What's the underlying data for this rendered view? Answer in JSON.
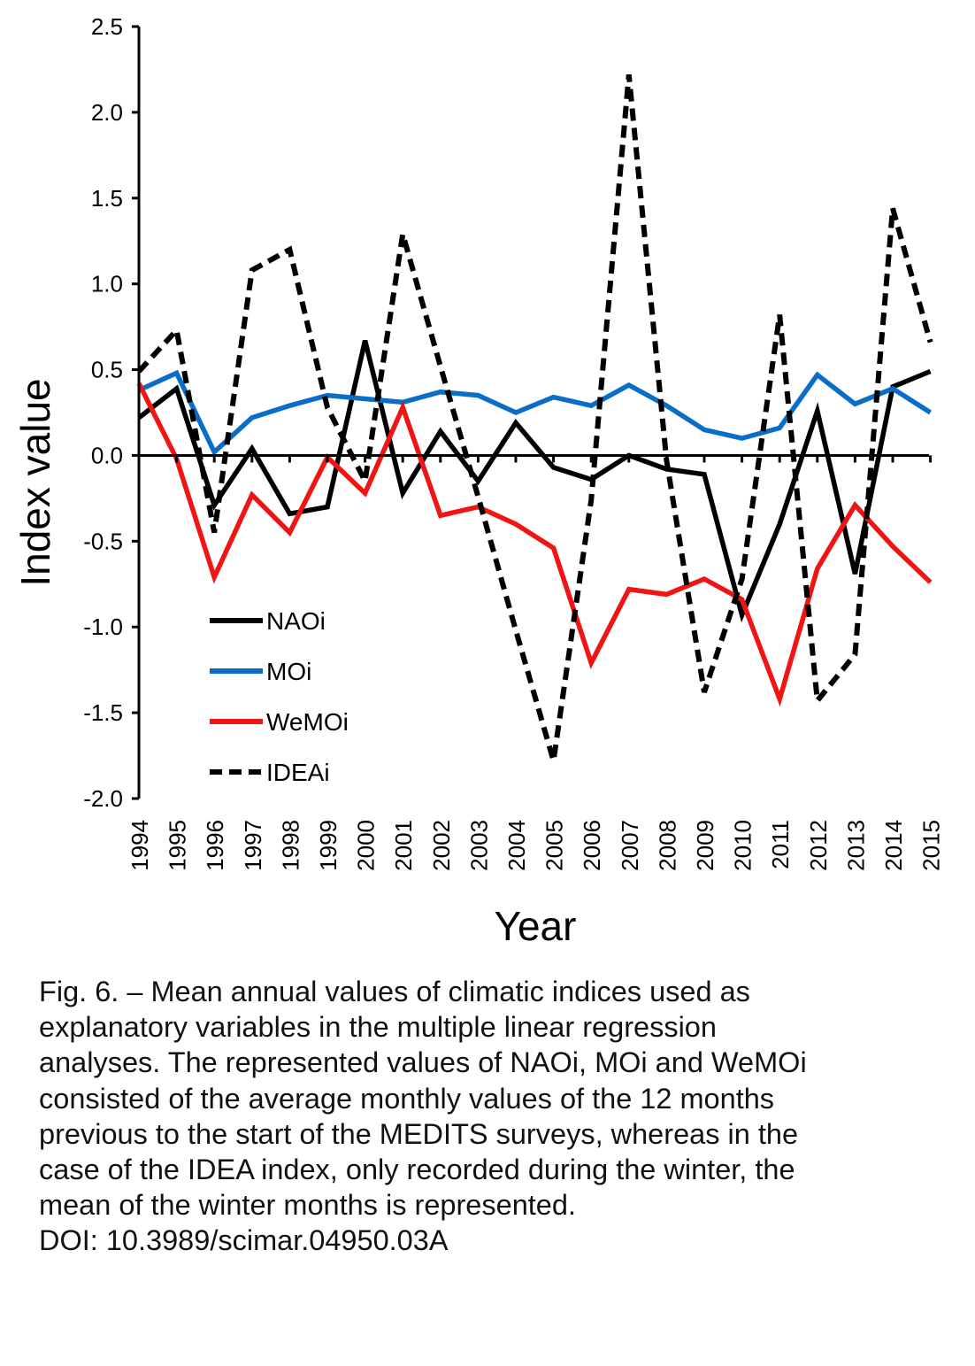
{
  "chart_data": {
    "type": "line",
    "title": "",
    "xlabel": "Year",
    "ylabel": "Index value",
    "ylim": [
      -2.0,
      2.5
    ],
    "yticks": [
      "2.5",
      "2.0",
      "1.5",
      "1.0",
      "0.5",
      "0.0",
      "-0.5",
      "-1.0",
      "-1.5",
      "-2.0"
    ],
    "categories": [
      "1994",
      "1995",
      "1996",
      "1997",
      "1998",
      "1999",
      "2000",
      "2001",
      "2002",
      "2003",
      "2004",
      "2005",
      "2006",
      "2007",
      "2008",
      "2009",
      "2010",
      "2011",
      "2012",
      "2013",
      "2014",
      "2015"
    ],
    "grid": false,
    "legend_position": "bottom-left",
    "series": [
      {
        "name": "NAOi",
        "color": "#000000",
        "dash": "solid",
        "values": [
          0.22,
          0.39,
          -0.29,
          0.04,
          -0.34,
          -0.3,
          0.67,
          -0.22,
          0.14,
          -0.15,
          0.19,
          -0.07,
          -0.14,
          0.0,
          -0.08,
          -0.11,
          -0.93,
          -0.4,
          0.26,
          -0.69,
          0.4,
          0.49
        ]
      },
      {
        "name": "MOi",
        "color": "#0a6ec9",
        "dash": "solid",
        "values": [
          0.38,
          0.48,
          0.02,
          0.22,
          0.29,
          0.35,
          0.33,
          0.31,
          0.37,
          0.35,
          0.25,
          0.34,
          0.29,
          0.41,
          0.29,
          0.15,
          0.1,
          0.16,
          0.47,
          0.3,
          0.39,
          0.25
        ]
      },
      {
        "name": "WeMOi",
        "color": "#f01414",
        "dash": "solid",
        "values": [
          0.42,
          -0.02,
          -0.71,
          -0.23,
          -0.45,
          -0.01,
          -0.22,
          0.28,
          -0.35,
          -0.3,
          -0.4,
          -0.54,
          -1.21,
          -0.78,
          -0.81,
          -0.72,
          -0.84,
          -1.42,
          -0.66,
          -0.29,
          -0.53,
          -0.74
        ]
      },
      {
        "name": "IDEAi",
        "color": "#000000",
        "dash": "dashed",
        "values": [
          0.49,
          0.73,
          -0.45,
          1.08,
          1.2,
          0.28,
          -0.15,
          1.29,
          0.52,
          -0.24,
          -1.02,
          -1.78,
          -0.26,
          2.22,
          -0.03,
          -1.38,
          -0.72,
          0.82,
          -1.43,
          -1.16,
          1.44,
          0.66
        ]
      }
    ]
  },
  "caption": {
    "lines": [
      "Fig. 6. – Mean annual values of climatic indices used as",
      "explanatory variables in the multiple linear regression",
      "analyses. The represented values of NAOi, MOi and WeMOi",
      "consisted of the average monthly values of the 12 months",
      "previous to the start of the MEDITS surveys, whereas in the",
      "case of the IDEA index, only recorded during the winter, the",
      "mean of the winter months is represented."
    ],
    "doi": "DOI: 10.3989/scimar.04950.03A"
  }
}
